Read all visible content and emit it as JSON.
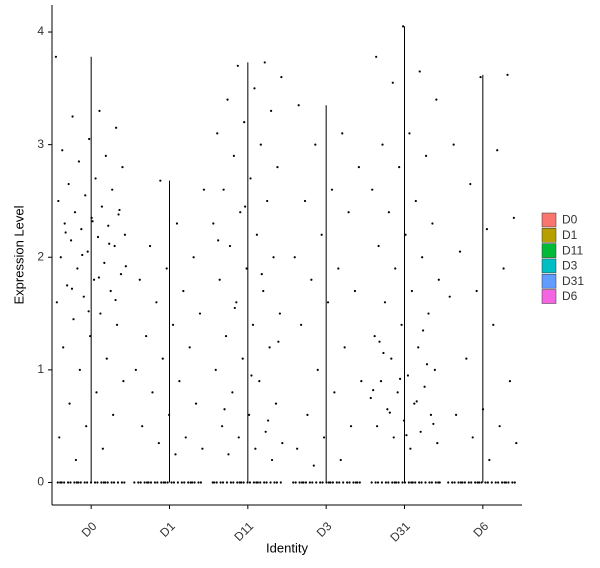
{
  "chart_data": {
    "type": "violin",
    "x_label": "Identity",
    "y_label": "Expression Level",
    "categories": [
      "D0",
      "D1",
      "D11",
      "D3",
      "D31",
      "D6"
    ],
    "ylim": [
      -0.2,
      4.24
    ],
    "yticks": [
      0,
      1,
      2,
      3,
      4
    ],
    "series": [
      {
        "name": "D0",
        "color": "#F8766D",
        "values": [
          3.78,
          3.3,
          3.25,
          3.15,
          3.05,
          2.95,
          2.9,
          2.85,
          2.8,
          2.7,
          2.65,
          2.6,
          2.55,
          2.5,
          2.45,
          2.4,
          2.38,
          2.35,
          2.3,
          2.28,
          2.25,
          2.2,
          2.18,
          2.15,
          2.1,
          2.05,
          2.0,
          1.95,
          1.9,
          1.85,
          1.8,
          1.75,
          1.7,
          1.65,
          1.6,
          1.5,
          1.45,
          1.4,
          1.3,
          1.2,
          1.1,
          1.0,
          0.9,
          0.8,
          0.7,
          0.6,
          0.5,
          0.4,
          0.3,
          0.2,
          2.42,
          2.32,
          2.22,
          2.12,
          2.02,
          1.92,
          1.82,
          1.72,
          1.62,
          1.52,
          0,
          0,
          0,
          0,
          0,
          0,
          0,
          0,
          0,
          0,
          0,
          0,
          0,
          0,
          0,
          0,
          0,
          0,
          0,
          0,
          0,
          0,
          0,
          0
        ]
      },
      {
        "name": "D1",
        "color": "#B79F00",
        "values": [
          2.68,
          2.6,
          2.3,
          2.1,
          2.0,
          1.9,
          1.8,
          1.7,
          1.6,
          1.5,
          1.4,
          1.3,
          1.2,
          1.1,
          1.0,
          0.9,
          0.8,
          0.7,
          0.6,
          0.5,
          0.4,
          0.35,
          0.3,
          0.25,
          0,
          0,
          0,
          0,
          0,
          0,
          0,
          0,
          0,
          0,
          0,
          0,
          0,
          0,
          0,
          0,
          0,
          0,
          0,
          0,
          0,
          0,
          0,
          0
        ]
      },
      {
        "name": "D11",
        "color": "#00BA38",
        "values": [
          3.73,
          3.7,
          3.6,
          3.5,
          3.4,
          3.3,
          3.2,
          3.1,
          3.0,
          2.9,
          2.8,
          2.7,
          2.6,
          2.5,
          2.4,
          2.3,
          2.2,
          2.1,
          2.0,
          1.9,
          1.8,
          1.7,
          1.6,
          1.5,
          1.4,
          1.3,
          1.2,
          1.1,
          1.0,
          0.9,
          0.8,
          0.7,
          0.6,
          0.5,
          0.45,
          0.4,
          0.35,
          0.3,
          0.25,
          0.2,
          2.45,
          2.15,
          1.85,
          1.55,
          1.25,
          0.95,
          0.65,
          0.55,
          0,
          0,
          0,
          0,
          0,
          0,
          0,
          0,
          0,
          0,
          0,
          0,
          0,
          0,
          0,
          0,
          0,
          0,
          0,
          0,
          0,
          0,
          0,
          0
        ]
      },
      {
        "name": "D3",
        "color": "#00BFC4",
        "values": [
          3.35,
          3.1,
          3.0,
          2.8,
          2.6,
          2.5,
          2.4,
          2.2,
          2.0,
          1.9,
          1.8,
          1.7,
          1.6,
          1.4,
          1.2,
          1.0,
          0.9,
          0.8,
          0.6,
          0.5,
          0.4,
          0.3,
          0.2,
          0.15,
          0,
          0,
          0,
          0,
          0,
          0,
          0,
          0,
          0,
          0,
          0,
          0,
          0,
          0,
          0,
          0,
          0,
          0,
          0,
          0,
          0,
          0,
          0,
          0
        ]
      },
      {
        "name": "D31",
        "color": "#619CFF",
        "values": [
          4.05,
          3.78,
          3.65,
          3.55,
          3.4,
          3.1,
          3.0,
          2.9,
          2.8,
          2.6,
          2.5,
          2.4,
          2.3,
          2.2,
          2.1,
          2.0,
          1.9,
          1.8,
          1.7,
          1.6,
          1.5,
          1.4,
          1.3,
          1.2,
          1.1,
          1.0,
          0.95,
          0.9,
          0.85,
          0.8,
          0.75,
          0.7,
          0.65,
          0.6,
          0.55,
          0.5,
          0.45,
          0.4,
          0.35,
          0.3,
          1.15,
          1.05,
          0.92,
          0.82,
          0.72,
          0.62,
          0.52,
          0.42,
          1.25,
          1.35,
          0,
          0,
          0,
          0,
          0,
          0,
          0,
          0,
          0,
          0,
          0,
          0,
          0,
          0,
          0,
          0,
          0,
          0,
          0,
          0,
          0,
          0,
          0,
          0
        ]
      },
      {
        "name": "D6",
        "color": "#F564E3",
        "values": [
          3.62,
          3.6,
          3.0,
          2.95,
          2.65,
          2.35,
          2.25,
          2.05,
          1.9,
          1.7,
          1.65,
          1.4,
          1.1,
          0.9,
          0.65,
          0.6,
          0.5,
          0.4,
          0.35,
          0.2,
          0,
          0,
          0,
          0,
          0,
          0,
          0,
          0,
          0,
          0,
          0,
          0,
          0,
          0,
          0,
          0,
          0,
          0,
          0,
          0,
          0,
          0,
          0,
          0
        ]
      }
    ]
  }
}
